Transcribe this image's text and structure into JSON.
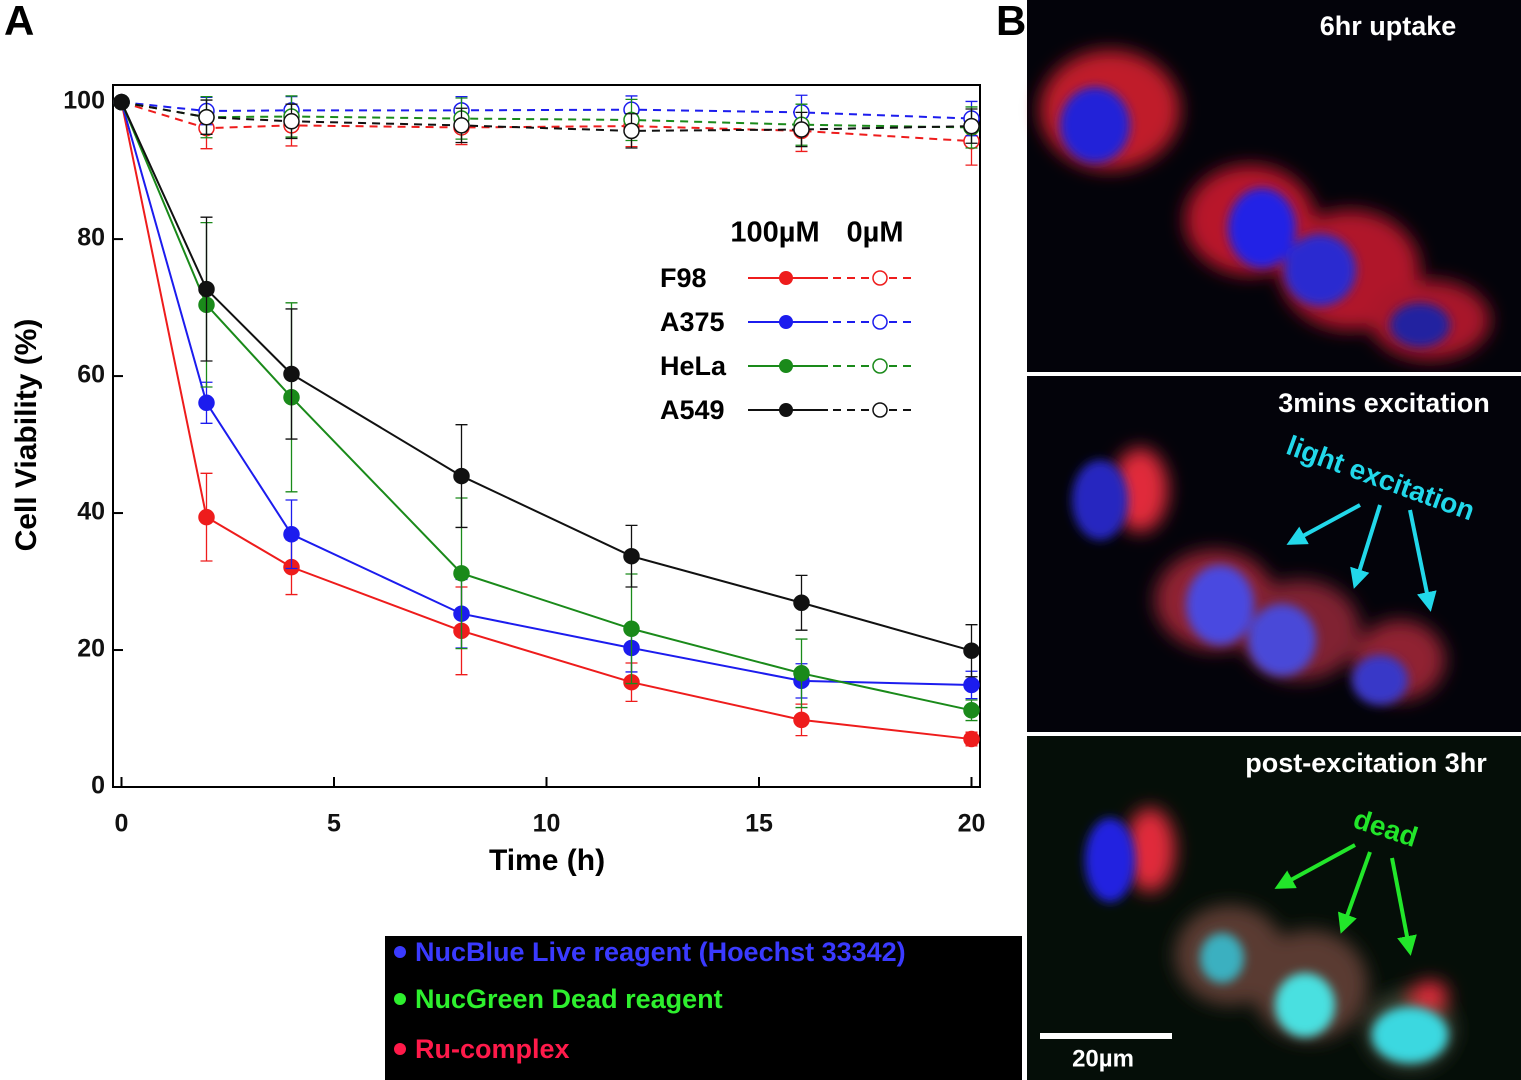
{
  "panel_labels": [
    "A",
    "B"
  ],
  "chart_data": {
    "type": "line",
    "xlabel": "Time (h)",
    "ylabel": "Cell Viability (%)",
    "x": [
      0,
      2,
      4,
      8,
      12,
      16,
      20
    ],
    "xlim": [
      -0.2,
      20.2
    ],
    "xticks": [
      0,
      5,
      10,
      15,
      20
    ],
    "ylim": [
      0,
      102.5
    ],
    "yticks": [
      0,
      20,
      40,
      60,
      80,
      100
    ],
    "legend_headers": [
      "100µM",
      "0µM"
    ],
    "series": [
      {
        "name": "F98",
        "color": "#ee1c1c",
        "values": [
          100,
          39.4,
          32.1,
          22.8,
          15.3,
          9.8,
          7.0
        ],
        "errors": [
          0,
          6.4,
          4,
          6.4,
          2.8,
          2.3,
          1
        ],
        "control": {
          "values": [
            100,
            96.2,
            96.6,
            96.3,
            96.5,
            95.8,
            94.3
          ],
          "errors": [
            0,
            3,
            3,
            2.5,
            3,
            3,
            3.5
          ]
        }
      },
      {
        "name": "A375",
        "color": "#1c1cee",
        "values": [
          100,
          56.1,
          36.9,
          25.3,
          20.3,
          15.5,
          14.9
        ],
        "errors": [
          0,
          3,
          5,
          5,
          3.5,
          2.5,
          2
        ],
        "control": {
          "values": [
            100,
            98.7,
            98.8,
            98.8,
            98.9,
            98.5,
            97.6
          ],
          "errors": [
            0,
            2,
            2,
            2,
            2,
            2.5,
            2.5
          ]
        }
      },
      {
        "name": "HeLa",
        "color": "#1a8a1a",
        "values": [
          100,
          70.4,
          56.9,
          31.2,
          23.1,
          16.6,
          11.2
        ],
        "errors": [
          0,
          12,
          13.8,
          11,
          8,
          5,
          1.5
        ],
        "control": {
          "values": [
            100,
            97.8,
            97.9,
            97.6,
            97.4,
            96.7,
            96.3
          ],
          "errors": [
            0,
            3,
            3,
            3,
            3,
            3,
            3
          ]
        }
      },
      {
        "name": "A549",
        "color": "#111111",
        "values": [
          100,
          72.7,
          60.3,
          45.4,
          33.7,
          26.9,
          19.9
        ],
        "errors": [
          0,
          10.5,
          9.5,
          7.5,
          4.5,
          4,
          3.8
        ],
        "control": {
          "values": [
            100,
            97.8,
            97.2,
            96.6,
            95.8,
            96.0,
            96.5
          ],
          "errors": [
            0,
            2.5,
            2.5,
            2.5,
            2.5,
            2.5,
            2.5
          ]
        }
      }
    ]
  },
  "images": [
    {
      "label": "6hr uptake"
    },
    {
      "label": "3mins excitation",
      "annotation": "light excitation"
    },
    {
      "label": "post-excitation 3hr",
      "annotation": "dead",
      "scale_bar": "20µm"
    }
  ],
  "stain_legend": [
    "NucBlue Live reagent (Hoechst 33342)",
    "NucGreen Dead reagent",
    "Ru-complex"
  ]
}
